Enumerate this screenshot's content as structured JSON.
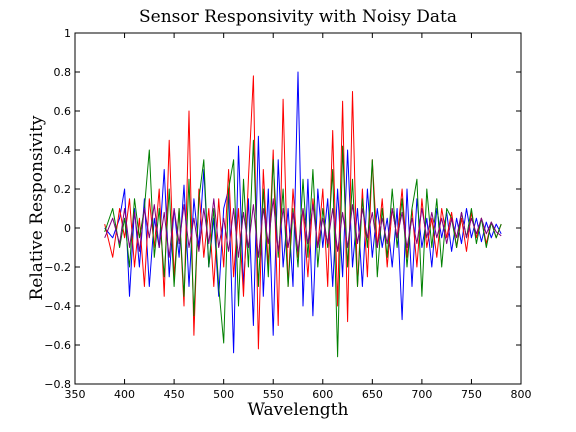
{
  "chart_data": {
    "type": "line",
    "title": "Sensor Responsivity with Noisy Data",
    "xlabel": "Wavelength",
    "ylabel": "Relative Responsivity",
    "xlim": [
      350,
      800
    ],
    "ylim": [
      -0.8,
      1
    ],
    "xticks": [
      350,
      400,
      450,
      500,
      550,
      600,
      650,
      700,
      750,
      800
    ],
    "yticks": [
      -0.8,
      -0.6,
      -0.4,
      -0.2,
      0,
      0.2,
      0.4,
      0.6,
      0.8,
      1
    ],
    "ytick_labels": [
      "−0.8",
      "−0.6",
      "−0.4",
      "−0.2",
      "0",
      "0.2",
      "0.4",
      "0.6",
      "0.8",
      "1"
    ],
    "grid": false,
    "legend": "none",
    "series": [
      {
        "color": "#0000ff",
        "x": [
          380,
          388,
          395,
          400,
          405,
          410,
          415,
          420,
          425,
          430,
          435,
          440,
          445,
          450,
          455,
          460,
          465,
          470,
          475,
          480,
          485,
          490,
          495,
          500,
          505,
          510,
          515,
          520,
          525,
          530,
          535,
          540,
          545,
          550,
          555,
          560,
          565,
          570,
          575,
          580,
          585,
          590,
          595,
          600,
          605,
          610,
          615,
          620,
          625,
          630,
          635,
          640,
          645,
          650,
          655,
          660,
          665,
          670,
          675,
          680,
          685,
          690,
          695,
          700,
          705,
          710,
          715,
          720,
          725,
          730,
          735,
          740,
          745,
          750,
          755,
          760,
          765,
          770,
          775,
          780
        ],
        "y": [
          0.0,
          -0.05,
          0.05,
          0.2,
          -0.35,
          0.1,
          -0.2,
          0.15,
          -0.3,
          0.05,
          -0.1,
          0.3,
          -0.25,
          0.1,
          -0.15,
          0.22,
          -0.3,
          0.15,
          -0.1,
          0.3,
          -0.2,
          0.05,
          -0.35,
          0.1,
          0.2,
          -0.64,
          0.42,
          -0.3,
          0.15,
          -0.5,
          0.47,
          -0.35,
          0.2,
          -0.55,
          0.35,
          -0.2,
          0.1,
          -0.3,
          0.8,
          -0.4,
          0.25,
          -0.45,
          0.2,
          -0.1,
          0.15,
          -0.3,
          0.2,
          -0.25,
          0.4,
          -0.2,
          0.1,
          -0.3,
          0.2,
          -0.15,
          0.1,
          -0.1,
          0.05,
          -0.2,
          0.1,
          -0.47,
          0.2,
          -0.3,
          0.15,
          -0.1,
          0.05,
          -0.2,
          0.1,
          -0.05,
          0.08,
          -0.12,
          0.05,
          -0.08,
          0.1,
          -0.05,
          0.05,
          -0.07,
          0.03,
          -0.05,
          0.02,
          -0.03
        ]
      },
      {
        "color": "#ff0000",
        "x": [
          380,
          388,
          395,
          400,
          405,
          410,
          415,
          420,
          425,
          430,
          435,
          440,
          445,
          450,
          455,
          460,
          465,
          470,
          475,
          480,
          485,
          490,
          495,
          500,
          505,
          510,
          515,
          520,
          525,
          530,
          535,
          540,
          545,
          550,
          555,
          560,
          565,
          570,
          575,
          580,
          585,
          590,
          595,
          600,
          605,
          610,
          615,
          620,
          625,
          630,
          635,
          640,
          645,
          650,
          655,
          660,
          665,
          670,
          675,
          680,
          685,
          690,
          695,
          700,
          705,
          710,
          715,
          720,
          725,
          730,
          735,
          740,
          745,
          750,
          755,
          760,
          765,
          770,
          775,
          780
        ],
        "y": [
          0.02,
          -0.15,
          0.1,
          -0.05,
          0.15,
          -0.2,
          0.05,
          -0.3,
          0.15,
          -0.1,
          0.2,
          -0.35,
          0.45,
          -0.25,
          0.1,
          -0.4,
          0.6,
          -0.55,
          0.2,
          -0.15,
          0.1,
          -0.3,
          0.15,
          -0.2,
          0.3,
          -0.25,
          0.1,
          -0.35,
          0.25,
          0.78,
          -0.62,
          0.3,
          -0.2,
          0.4,
          -0.5,
          0.66,
          -0.3,
          0.2,
          -0.15,
          0.1,
          -0.25,
          0.15,
          -0.1,
          0.2,
          -0.3,
          0.5,
          -0.4,
          0.65,
          -0.48,
          0.7,
          -0.3,
          0.2,
          -0.25,
          0.35,
          -0.1,
          0.15,
          -0.2,
          0.1,
          -0.05,
          0.2,
          -0.15,
          0.1,
          -0.2,
          0.15,
          -0.1,
          0.05,
          -0.15,
          0.1,
          -0.05,
          0.08,
          -0.1,
          0.05,
          -0.12,
          0.08,
          -0.05,
          0.05,
          -0.08,
          0.03,
          -0.05,
          0.02
        ]
      },
      {
        "color": "#008000",
        "x": [
          380,
          388,
          395,
          400,
          405,
          410,
          415,
          420,
          425,
          430,
          435,
          440,
          445,
          450,
          455,
          460,
          465,
          470,
          475,
          480,
          485,
          490,
          495,
          500,
          505,
          510,
          515,
          520,
          525,
          530,
          535,
          540,
          545,
          550,
          555,
          560,
          565,
          570,
          575,
          580,
          585,
          590,
          595,
          600,
          605,
          610,
          615,
          620,
          625,
          630,
          635,
          640,
          645,
          650,
          655,
          660,
          665,
          670,
          675,
          680,
          685,
          690,
          695,
          700,
          705,
          710,
          715,
          720,
          725,
          730,
          735,
          740,
          745,
          750,
          755,
          760,
          765,
          770,
          775,
          780
        ],
        "y": [
          -0.02,
          0.1,
          -0.1,
          0.05,
          -0.2,
          0.15,
          -0.05,
          0.1,
          0.4,
          -0.15,
          0.1,
          -0.25,
          0.2,
          -0.3,
          0.1,
          -0.35,
          0.25,
          -0.45,
          0.15,
          0.35,
          -0.2,
          0.1,
          -0.3,
          -0.59,
          0.2,
          0.35,
          -0.4,
          0.25,
          -0.2,
          0.45,
          -0.3,
          0.2,
          -0.25,
          0.35,
          -0.15,
          0.2,
          -0.3,
          0.1,
          -0.2,
          0.25,
          -0.15,
          0.3,
          -0.2,
          0.1,
          -0.1,
          0.3,
          -0.66,
          0.42,
          -0.2,
          0.25,
          -0.3,
          0.15,
          -0.1,
          0.35,
          -0.25,
          0.1,
          -0.15,
          0.2,
          -0.1,
          0.15,
          -0.2,
          0.1,
          0.25,
          -0.35,
          0.2,
          -0.1,
          0.15,
          -0.2,
          0.1,
          0.05,
          -0.1,
          0.08,
          -0.05,
          0.1,
          -0.08,
          0.05,
          -0.1,
          0.03,
          -0.05,
          0.02
        ]
      },
      {
        "color": "#800080",
        "x": [
          380,
          388,
          395,
          400,
          405,
          410,
          415,
          420,
          425,
          430,
          435,
          440,
          445,
          450,
          455,
          460,
          465,
          470,
          475,
          480,
          485,
          490,
          495,
          500,
          505,
          510,
          515,
          520,
          525,
          530,
          535,
          540,
          545,
          550,
          555,
          560,
          565,
          570,
          575,
          580,
          585,
          590,
          595,
          600,
          605,
          610,
          615,
          620,
          625,
          630,
          635,
          640,
          645,
          650,
          655,
          660,
          665,
          670,
          675,
          680,
          685,
          690,
          695,
          700,
          705,
          710,
          715,
          720,
          725,
          730,
          735,
          740,
          745,
          750,
          755,
          760,
          765,
          770,
          775,
          780
        ],
        "y": [
          -0.05,
          0.05,
          -0.08,
          0.1,
          -0.1,
          0.08,
          -0.12,
          0.1,
          -0.05,
          0.12,
          -0.1,
          0.08,
          -0.15,
          0.1,
          -0.08,
          0.12,
          -0.1,
          0.05,
          -0.12,
          0.1,
          -0.08,
          0.15,
          -0.1,
          0.05,
          -0.12,
          0.1,
          -0.15,
          0.08,
          -0.1,
          0.12,
          -0.15,
          0.1,
          -0.08,
          0.15,
          -0.12,
          0.1,
          -0.1,
          0.08,
          -0.12,
          0.1,
          -0.08,
          0.12,
          -0.1,
          0.05,
          -0.08,
          0.1,
          -0.12,
          0.08,
          -0.1,
          0.12,
          -0.08,
          0.1,
          -0.05,
          0.08,
          -0.1,
          0.05,
          -0.08,
          0.1,
          -0.05,
          0.08,
          -0.1,
          0.05,
          -0.08,
          0.1,
          -0.05,
          0.08,
          -0.05,
          0.05,
          -0.08,
          0.05,
          -0.05,
          0.08,
          -0.05,
          0.05,
          -0.03,
          0.05,
          -0.03,
          0.03,
          -0.02,
          -0.04
        ]
      }
    ]
  }
}
